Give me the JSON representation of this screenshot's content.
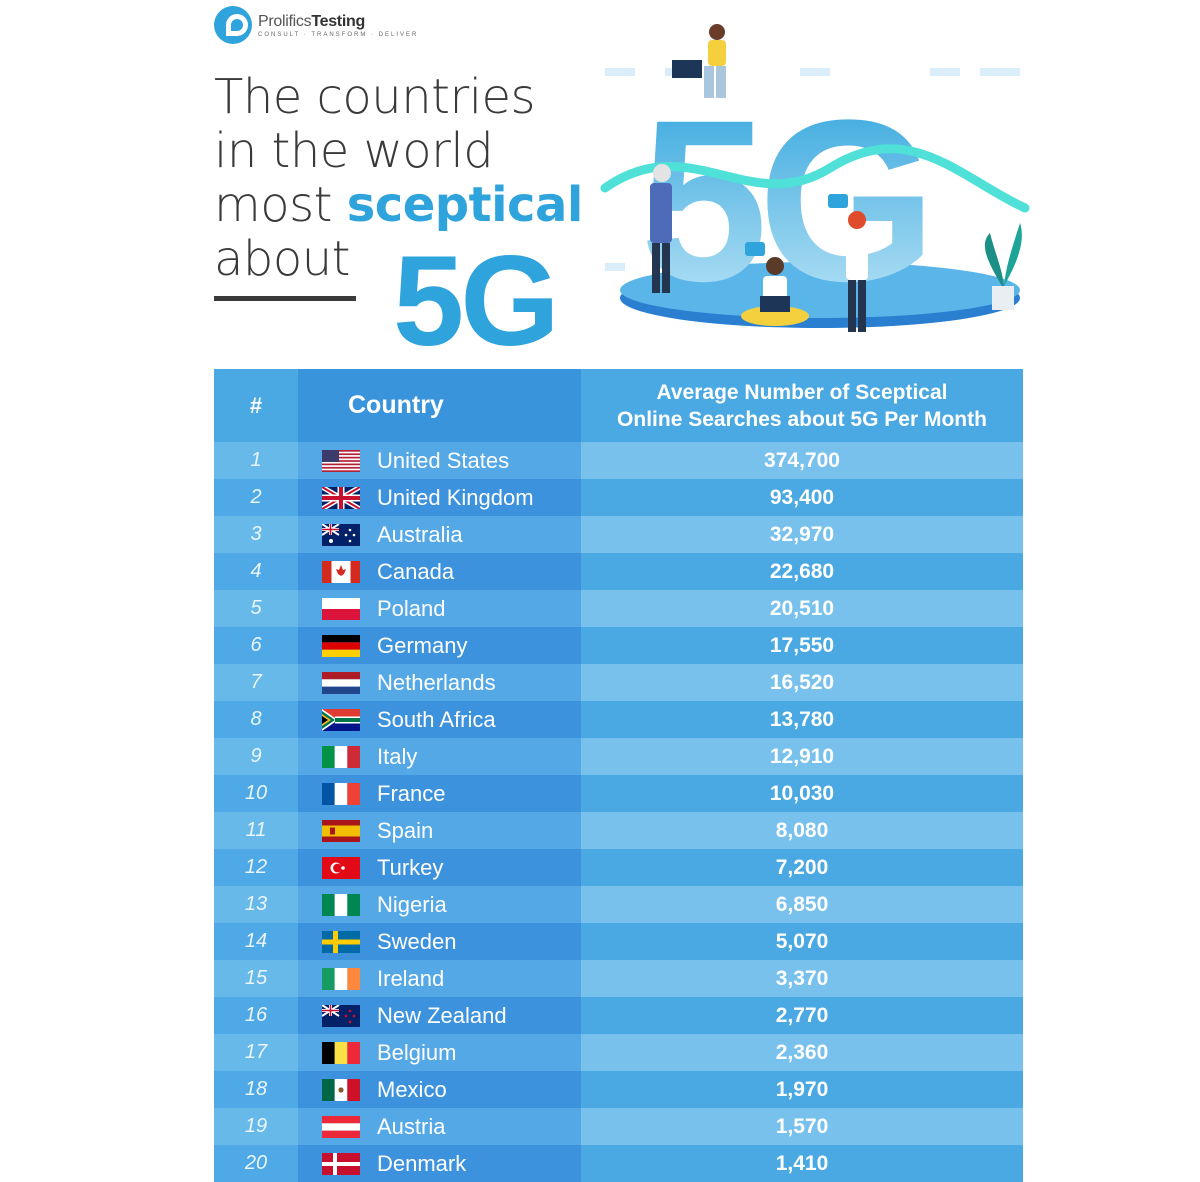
{
  "brand": {
    "name_light": "Prolifics",
    "name_bold": "Testing",
    "tagline": "CONSULT · TRANSFORM · DELIVER",
    "accent_color": "#2ea3dc"
  },
  "headline": {
    "line1": "The countries",
    "line2": "in the world",
    "line3_plain": "most ",
    "line3_accent": "sceptical",
    "line4": "about",
    "big": "5G"
  },
  "illustration": {
    "label": "5G"
  },
  "table": {
    "headers": {
      "rank": "#",
      "country": "Country",
      "value_line1": "Average Number of Sceptical",
      "value_line2": "Online Searches about 5G Per Month"
    }
  },
  "chart_data": {
    "type": "table",
    "columns": [
      "#",
      "Country",
      "Average Number of Sceptical Online Searches about 5G Per Month"
    ],
    "rows": [
      {
        "rank": "1",
        "country": "United States",
        "flag": "us-flag-icon",
        "value": "374,700"
      },
      {
        "rank": "2",
        "country": "United Kingdom",
        "flag": "uk-flag-icon",
        "value": "93,400"
      },
      {
        "rank": "3",
        "country": "Australia",
        "flag": "au-flag-icon",
        "value": "32,970"
      },
      {
        "rank": "4",
        "country": "Canada",
        "flag": "ca-flag-icon",
        "value": "22,680"
      },
      {
        "rank": "5",
        "country": "Poland",
        "flag": "pl-flag-icon",
        "value": "20,510"
      },
      {
        "rank": "6",
        "country": "Germany",
        "flag": "de-flag-icon",
        "value": "17,550"
      },
      {
        "rank": "7",
        "country": "Netherlands",
        "flag": "nl-flag-icon",
        "value": "16,520"
      },
      {
        "rank": "8",
        "country": "South Africa",
        "flag": "za-flag-icon",
        "value": "13,780"
      },
      {
        "rank": "9",
        "country": "Italy",
        "flag": "it-flag-icon",
        "value": "12,910"
      },
      {
        "rank": "10",
        "country": "France",
        "flag": "fr-flag-icon",
        "value": "10,030"
      },
      {
        "rank": "11",
        "country": "Spain",
        "flag": "es-flag-icon",
        "value": "8,080"
      },
      {
        "rank": "12",
        "country": "Turkey",
        "flag": "tr-flag-icon",
        "value": "7,200"
      },
      {
        "rank": "13",
        "country": "Nigeria",
        "flag": "ng-flag-icon",
        "value": "6,850"
      },
      {
        "rank": "14",
        "country": "Sweden",
        "flag": "se-flag-icon",
        "value": "5,070"
      },
      {
        "rank": "15",
        "country": "Ireland",
        "flag": "ie-flag-icon",
        "value": "3,370"
      },
      {
        "rank": "16",
        "country": "New Zealand",
        "flag": "nz-flag-icon",
        "value": "2,770"
      },
      {
        "rank": "17",
        "country": "Belgium",
        "flag": "be-flag-icon",
        "value": "2,360"
      },
      {
        "rank": "18",
        "country": "Mexico",
        "flag": "mx-flag-icon",
        "value": "1,970"
      },
      {
        "rank": "19",
        "country": "Austria",
        "flag": "at-flag-icon",
        "value": "1,570"
      },
      {
        "rank": "20",
        "country": "Denmark",
        "flag": "dk-flag-icon",
        "value": "1,410"
      }
    ]
  }
}
